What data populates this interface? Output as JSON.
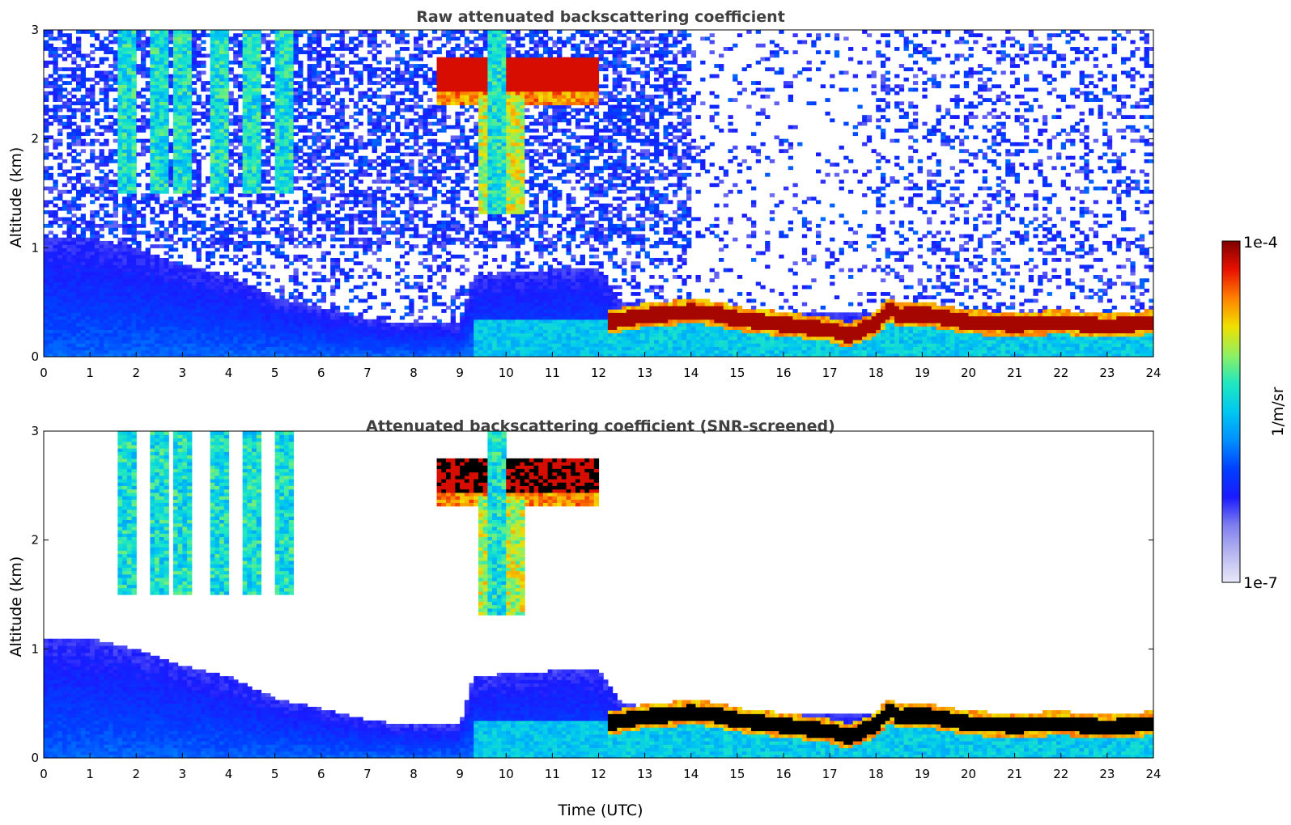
{
  "chart_data": [
    {
      "type": "heatmap",
      "title": "Raw attenuated backscattering coefficient",
      "xlabel": "",
      "ylabel": "Altitude (km)",
      "xlim": [
        0,
        24
      ],
      "ylim": [
        0,
        3
      ],
      "x_ticks": [
        "0",
        "1",
        "2",
        "3",
        "4",
        "5",
        "6",
        "7",
        "8",
        "9",
        "10",
        "11",
        "12",
        "13",
        "14",
        "15",
        "16",
        "17",
        "18",
        "19",
        "20",
        "21",
        "22",
        "23",
        "24"
      ],
      "y_ticks": [
        "0",
        "1",
        "2",
        "3"
      ],
      "screened": false,
      "features": {
        "boundary_layer_aerosol": [
          [
            0,
            1.1
          ],
          [
            1,
            1.1
          ],
          [
            2,
            1.0
          ],
          [
            3,
            0.85
          ],
          [
            4,
            0.75
          ],
          [
            5,
            0.55
          ],
          [
            6,
            0.45
          ],
          [
            7,
            0.35
          ],
          [
            8,
            0.3
          ],
          [
            9,
            0.3
          ],
          [
            9.3,
            0.75
          ],
          [
            11,
            0.8
          ],
          [
            12,
            0.8
          ],
          [
            12.5,
            0.5
          ],
          [
            14.5,
            0.4
          ]
        ],
        "cloud_base": [
          [
            12.2,
            0.32
          ],
          [
            13,
            0.38
          ],
          [
            14,
            0.42
          ],
          [
            14.5,
            0.4
          ],
          [
            15,
            0.35
          ],
          [
            16,
            0.3
          ],
          [
            17,
            0.25
          ],
          [
            17.4,
            0.2
          ],
          [
            18,
            0.3
          ],
          [
            18.3,
            0.45
          ],
          [
            18.5,
            0.38
          ],
          [
            19,
            0.4
          ],
          [
            20,
            0.32
          ],
          [
            21,
            0.3
          ],
          [
            22,
            0.32
          ],
          [
            23,
            0.28
          ],
          [
            23.5,
            0.3
          ],
          [
            24,
            0.32
          ]
        ],
        "mid_cloud": {
          "x_start": 8.5,
          "x_end": 12.0,
          "alt_base": 2.3,
          "alt_top": 2.75
        },
        "virga_columns": [
          1.8,
          2.5,
          3.0,
          3.8,
          4.5,
          5.2,
          9.8
        ]
      }
    },
    {
      "type": "heatmap",
      "title": "Attenuated backscattering coefficient (SNR-screened)",
      "xlabel": "Time (UTC)",
      "ylabel": "Altitude (km)",
      "xlim": [
        0,
        24
      ],
      "ylim": [
        0,
        3
      ],
      "x_ticks": [
        "0",
        "1",
        "2",
        "3",
        "4",
        "5",
        "6",
        "7",
        "8",
        "9",
        "10",
        "11",
        "12",
        "13",
        "14",
        "15",
        "16",
        "17",
        "18",
        "19",
        "20",
        "21",
        "22",
        "23",
        "24"
      ],
      "y_ticks": [
        "0",
        "1",
        "2",
        "3"
      ],
      "screened": true,
      "features": {
        "boundary_layer_aerosol": [
          [
            0,
            1.1
          ],
          [
            1,
            1.1
          ],
          [
            2,
            1.0
          ],
          [
            3,
            0.85
          ],
          [
            4,
            0.75
          ],
          [
            5,
            0.55
          ],
          [
            6,
            0.45
          ],
          [
            7,
            0.35
          ],
          [
            8,
            0.3
          ],
          [
            9,
            0.3
          ],
          [
            9.3,
            0.75
          ],
          [
            11,
            0.8
          ],
          [
            12,
            0.8
          ],
          [
            12.5,
            0.5
          ],
          [
            14.5,
            0.4
          ]
        ],
        "cloud_base": [
          [
            12.2,
            0.32
          ],
          [
            13,
            0.38
          ],
          [
            14,
            0.42
          ],
          [
            14.5,
            0.4
          ],
          [
            15,
            0.35
          ],
          [
            16,
            0.3
          ],
          [
            17,
            0.25
          ],
          [
            17.4,
            0.2
          ],
          [
            18,
            0.3
          ],
          [
            18.3,
            0.45
          ],
          [
            18.5,
            0.38
          ],
          [
            19,
            0.4
          ],
          [
            20,
            0.32
          ],
          [
            21,
            0.3
          ],
          [
            22,
            0.32
          ],
          [
            23,
            0.28
          ],
          [
            23.5,
            0.3
          ],
          [
            24,
            0.32
          ]
        ],
        "mid_cloud": {
          "x_start": 8.5,
          "x_end": 12.0,
          "alt_base": 2.3,
          "alt_top": 2.75
        },
        "virga_columns": [
          1.8,
          2.5,
          3.0,
          3.8,
          4.5,
          5.2,
          9.8
        ]
      }
    }
  ],
  "colorbar": {
    "label": "1/m/sr",
    "max_label": "1e-4",
    "min_label": "1e-7",
    "colormap": [
      "#e8e8f8",
      "#b8b8f0",
      "#7f7ff0",
      "#1a1aff",
      "#0040ff",
      "#0090ff",
      "#00c8f0",
      "#20e8c0",
      "#90f060",
      "#f0e000",
      "#ff8000",
      "#e81000",
      "#800000"
    ],
    "saturated_color": "#000000"
  }
}
